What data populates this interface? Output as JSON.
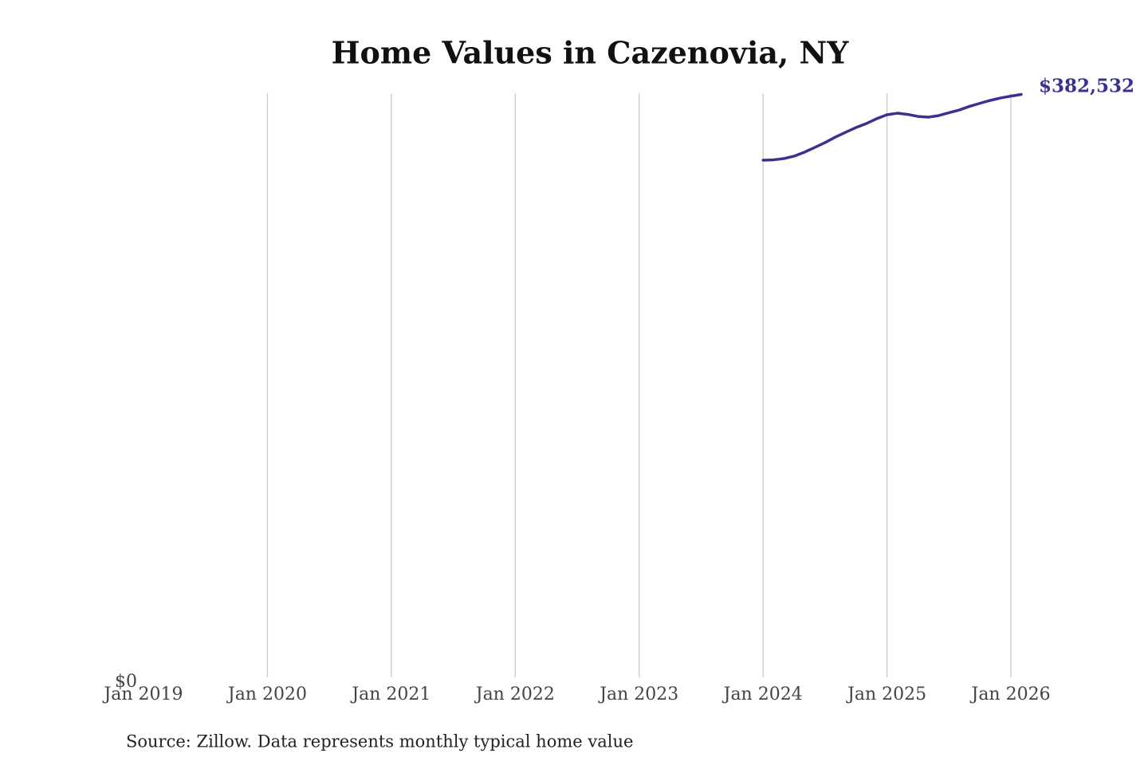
{
  "chart_data": {
    "type": "line",
    "title": "Home Values in Cazenovia, NY",
    "source": "Source: Zillow. Data represents monthly typical home value",
    "x": [
      "2024-01",
      "2024-02",
      "2024-03",
      "2024-04",
      "2024-05",
      "2024-06",
      "2024-07",
      "2024-08",
      "2024-09",
      "2024-10",
      "2024-11",
      "2024-12",
      "2025-01",
      "2025-02",
      "2025-03",
      "2025-04",
      "2025-05",
      "2025-06",
      "2025-07",
      "2025-08",
      "2025-09",
      "2025-10",
      "2025-11",
      "2025-12",
      "2026-01",
      "2026-02"
    ],
    "series": [
      {
        "color": "#3a3291",
        "values": [
          339400,
          339600,
          340400,
          342000,
          344600,
          347700,
          350900,
          354500,
          357700,
          360800,
          363400,
          366600,
          369200,
          370200,
          369400,
          368100,
          367600,
          368600,
          370500,
          372300,
          374700,
          376700,
          378600,
          380200,
          381400,
          382532
        ],
        "value_labels": [
          null,
          null,
          null,
          null,
          null,
          null,
          null,
          null,
          null,
          null,
          null,
          null,
          null,
          null,
          null,
          null,
          null,
          null,
          null,
          null,
          null,
          null,
          null,
          null,
          null,
          "$382,532"
        ]
      }
    ],
    "xlim": [
      "2019-01",
      "2026-02"
    ],
    "xticks": [
      {
        "value": "2019-01",
        "label": "Jan 2019"
      },
      {
        "value": "2020-01",
        "label": "Jan 2020"
      },
      {
        "value": "2021-01",
        "label": "Jan 2021"
      },
      {
        "value": "2022-01",
        "label": "Jan 2022"
      },
      {
        "value": "2023-01",
        "label": "Jan 2023"
      },
      {
        "value": "2024-01",
        "label": "Jan 2024"
      },
      {
        "value": "2025-01",
        "label": "Jan 2025"
      },
      {
        "value": "2026-01",
        "label": "Jan 2026"
      }
    ],
    "ylim": [
      0,
      383300
    ],
    "yticks": [
      {
        "value": 0,
        "label": "$0"
      }
    ],
    "grid": true
  }
}
